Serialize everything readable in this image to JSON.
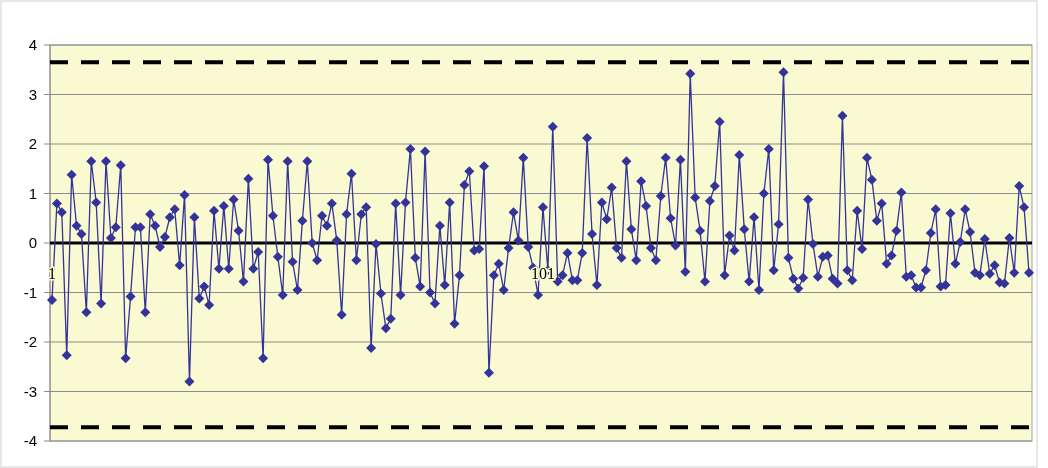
{
  "chart_data": {
    "type": "line",
    "categories": [
      "1",
      null,
      null,
      null,
      null,
      null,
      null,
      null,
      null,
      null,
      null,
      null,
      null,
      null,
      null,
      null,
      null,
      null,
      null,
      null,
      null,
      null,
      null,
      null,
      null,
      null,
      null,
      null,
      null,
      null,
      null,
      null,
      null,
      null,
      null,
      null,
      null,
      null,
      null,
      null,
      null,
      null,
      null,
      null,
      null,
      null,
      null,
      null,
      null,
      null,
      null,
      null,
      null,
      null,
      null,
      null,
      null,
      null,
      null,
      null,
      null,
      null,
      null,
      null,
      null,
      null,
      null,
      null,
      null,
      null,
      null,
      null,
      null,
      null,
      null,
      null,
      null,
      null,
      null,
      null,
      null,
      null,
      null,
      null,
      null,
      null,
      null,
      null,
      null,
      null,
      null,
      null,
      null,
      null,
      null,
      null,
      null,
      null,
      null,
      null,
      "101",
      null,
      null,
      null,
      null,
      null,
      null,
      null,
      null,
      null,
      null,
      null,
      null,
      null,
      null,
      null,
      null,
      null,
      null,
      null,
      null,
      null,
      null,
      null,
      null,
      null,
      null,
      null,
      null,
      null,
      null,
      null,
      null,
      null,
      null,
      null,
      null,
      null,
      null,
      null,
      null,
      null,
      null,
      null,
      null,
      null,
      null,
      null,
      null,
      null,
      null,
      null,
      null,
      null,
      null,
      null,
      null,
      null,
      null,
      null,
      null,
      null,
      null,
      null,
      null,
      null,
      null,
      null,
      null,
      null,
      null,
      null,
      null,
      null,
      null,
      null,
      null,
      null,
      null,
      null,
      null,
      null,
      null,
      null,
      null,
      null,
      null,
      null,
      null,
      null,
      null,
      null,
      null,
      null,
      null,
      null,
      null,
      null,
      null,
      null
    ],
    "series": [
      {
        "color": "#333399",
        "values": [
          -1.15,
          0.8,
          0.62,
          -2.27,
          1.38,
          0.35,
          0.18,
          -1.4,
          1.65,
          0.82,
          -1.22,
          1.65,
          0.1,
          0.32,
          1.57,
          -2.33,
          -1.08,
          0.32,
          0.32,
          -1.4,
          0.58,
          0.35,
          -0.08,
          0.12,
          0.52,
          0.68,
          -0.45,
          0.97,
          -2.8,
          0.52,
          -1.12,
          -0.88,
          -1.25,
          0.65,
          -0.52,
          0.75,
          -0.52,
          0.88,
          0.25,
          -0.78,
          1.3,
          -0.52,
          -0.18,
          -2.33,
          1.68,
          0.55,
          -0.28,
          -1.05,
          1.65,
          -0.38,
          -0.95,
          0.45,
          1.65,
          0.0,
          -0.35,
          0.55,
          0.35,
          0.8,
          0.05,
          -1.45,
          0.58,
          1.4,
          -0.35,
          0.58,
          0.72,
          -2.12,
          -0.02,
          -1.02,
          -1.72,
          -1.53,
          0.8,
          -1.05,
          0.82,
          1.9,
          -0.3,
          -0.88,
          1.85,
          -1.0,
          -1.22,
          0.35,
          -0.85,
          0.82,
          -1.63,
          -0.65,
          1.17,
          1.45,
          -0.15,
          -0.12,
          1.55,
          -2.62,
          -0.65,
          -0.42,
          -0.95,
          -0.1,
          0.62,
          0.05,
          1.72,
          -0.08,
          -0.5,
          -1.05,
          0.72,
          -0.55,
          2.35,
          -0.78,
          -0.65,
          -0.2,
          -0.75,
          -0.75,
          -0.2,
          2.12,
          0.18,
          -0.85,
          0.82,
          0.48,
          1.12,
          -0.1,
          -0.3,
          1.65,
          0.28,
          -0.35,
          1.25,
          0.75,
          -0.1,
          -0.35,
          0.95,
          1.72,
          0.5,
          -0.05,
          1.68,
          -0.58,
          3.42,
          0.92,
          0.25,
          -0.78,
          0.85,
          1.15,
          2.45,
          -0.65,
          0.15,
          -0.15,
          1.78,
          0.28,
          -0.78,
          0.52,
          -0.95,
          1.0,
          1.9,
          -0.55,
          0.38,
          3.45,
          -0.3,
          -0.72,
          -0.92,
          -0.7,
          0.88,
          -0.02,
          -0.68,
          -0.28,
          -0.25,
          -0.72,
          -0.82,
          2.57,
          -0.55,
          -0.75,
          0.65,
          -0.12,
          1.72,
          1.28,
          0.45,
          0.8,
          -0.42,
          -0.25,
          0.25,
          1.02,
          -0.68,
          -0.65,
          -0.9,
          -0.9,
          -0.55,
          0.2,
          0.68,
          -0.88,
          -0.85,
          0.6,
          -0.42,
          0.02,
          0.68,
          0.22,
          -0.6,
          -0.65,
          0.08,
          -0.62,
          -0.45,
          -0.8,
          -0.82,
          0.1,
          -0.6,
          1.15,
          0.72,
          -0.6
        ]
      }
    ],
    "ylim": [
      -4,
      4
    ],
    "yticks": [
      -4,
      -3,
      -2,
      -1,
      0,
      1,
      2,
      3,
      4
    ],
    "grid": "y",
    "marker": "diamond",
    "line_style": "solid",
    "ref_lines": [
      {
        "axis": "y",
        "value": 3.65,
        "color": "#000000",
        "line_style": "dashed"
      },
      {
        "axis": "y",
        "value": -3.72,
        "color": "#000000",
        "line_style": "dashed"
      }
    ]
  }
}
